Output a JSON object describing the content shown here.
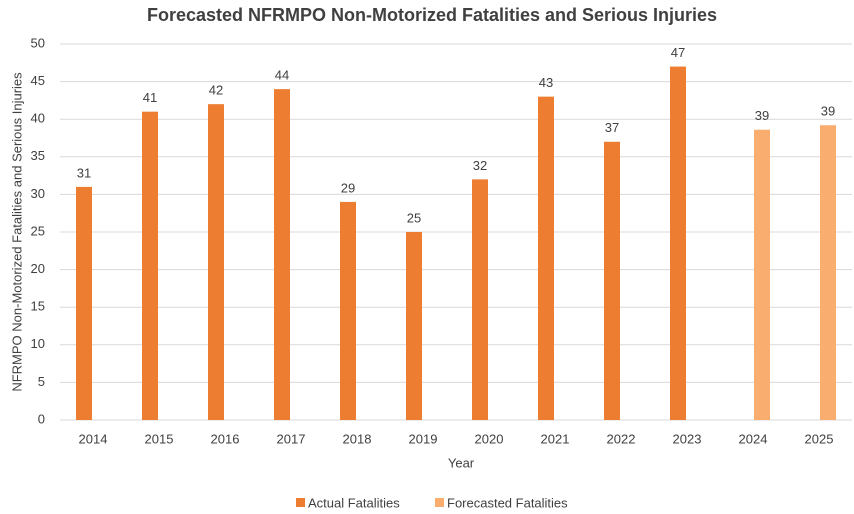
{
  "chart_data": {
    "type": "bar",
    "title": "Forecasted NFRMPO Non-Motorized Fatalities and Serious Injuries",
    "x_label": "Year",
    "y_label": "NFRMPO Non-Motorized Fatalities and Serious Injuries",
    "categories": [
      "2014",
      "2015",
      "2016",
      "2017",
      "2018",
      "2019",
      "2020",
      "2021",
      "2022",
      "2023",
      "2024",
      "2025"
    ],
    "series": [
      {
        "name": "Actual Fatalities",
        "color": "#ed7d31",
        "values": [
          31,
          41,
          42,
          44,
          29,
          25,
          32,
          43,
          37,
          47,
          null,
          null
        ]
      },
      {
        "name": "Forecasted Fatalities",
        "color": "#f9ad6e",
        "values": [
          null,
          null,
          null,
          null,
          null,
          null,
          null,
          null,
          null,
          null,
          38.6,
          39.2
        ],
        "value_labels": [
          null,
          null,
          null,
          null,
          null,
          null,
          null,
          null,
          null,
          null,
          "39",
          "39"
        ]
      }
    ],
    "ylim": [
      0,
      50
    ],
    "yticks": [
      0,
      5,
      10,
      15,
      20,
      25,
      30,
      35,
      40,
      45,
      50
    ],
    "grid": true,
    "legend": "bottom"
  }
}
